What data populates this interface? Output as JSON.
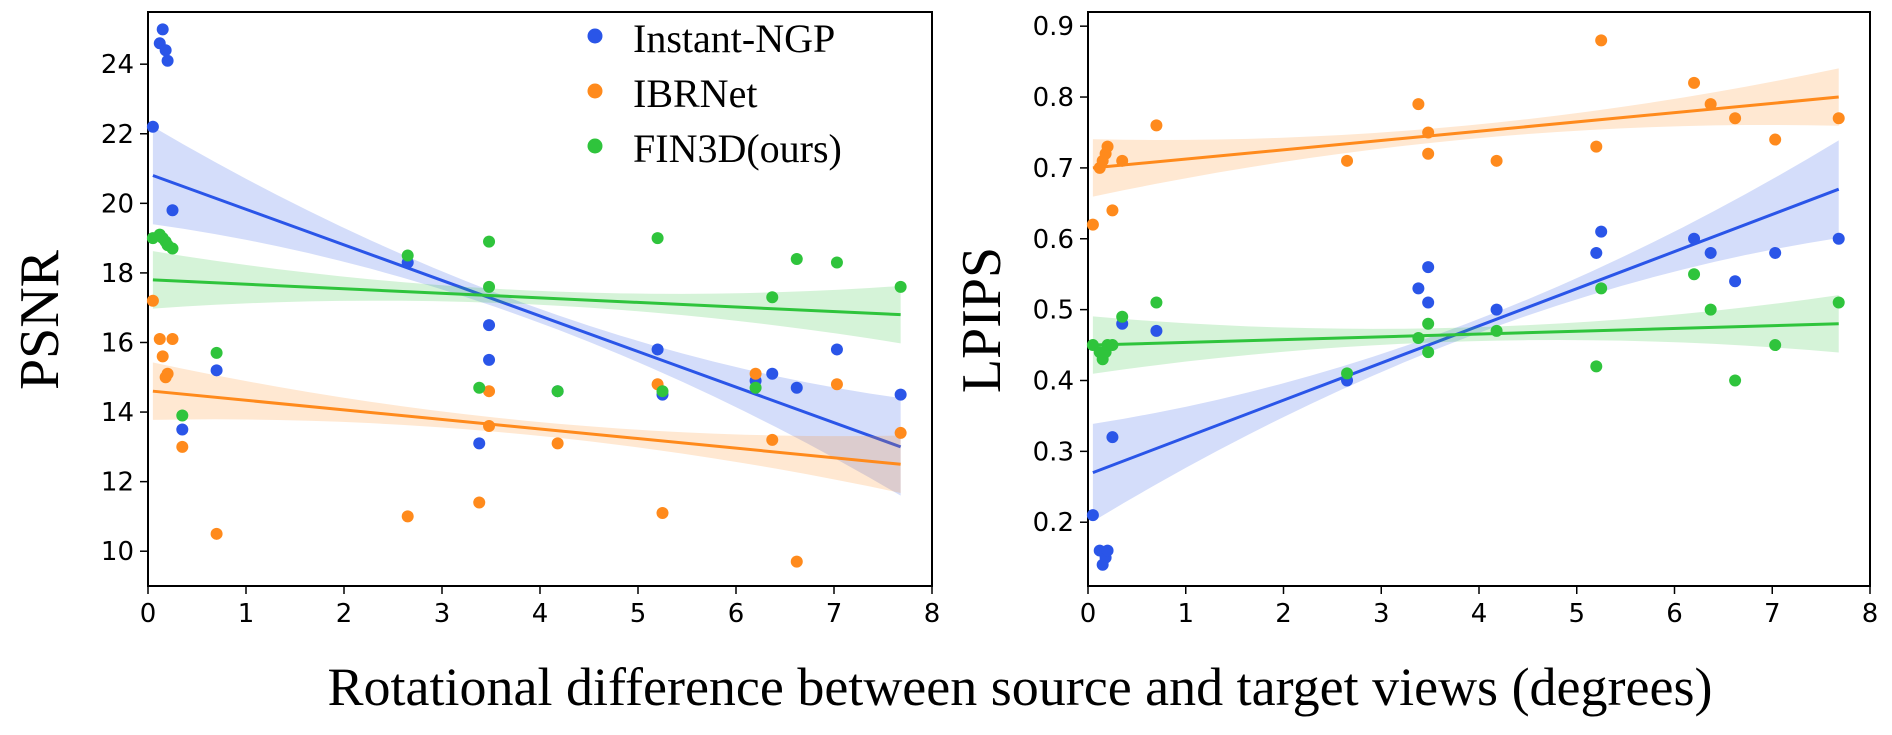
{
  "figure": {
    "xlabel": "Rotational difference between source and target views (degrees)"
  },
  "legend": [
    {
      "name": "Instant-NGP",
      "color": "#2a55e8"
    },
    {
      "name": "IBRNet",
      "color": "#ff8a1c"
    },
    {
      "name": "FIN3D(ours)",
      "color": "#2fc43c"
    }
  ],
  "chart_data": [
    {
      "type": "scatter",
      "ylabel": "PSNR",
      "xlim": [
        0,
        8
      ],
      "ylim": [
        9,
        25.5
      ],
      "xticks": [
        0,
        1,
        2,
        3,
        4,
        5,
        6,
        7,
        8
      ],
      "yticks": [
        10,
        12,
        14,
        16,
        18,
        20,
        22,
        24
      ],
      "series": [
        {
          "name": "Instant-NGP",
          "color": "#2a55e8",
          "x": [
            0.05,
            0.12,
            0.15,
            0.18,
            0.2,
            0.25,
            0.35,
            0.7,
            2.65,
            3.38,
            3.48,
            3.48,
            4.18,
            5.2,
            5.25,
            6.2,
            6.37,
            6.62,
            7.03,
            7.68
          ],
          "y": [
            22.2,
            24.6,
            25.0,
            24.4,
            24.1,
            19.8,
            13.5,
            15.2,
            18.3,
            13.1,
            16.5,
            15.5,
            14.6,
            15.8,
            14.5,
            14.9,
            15.1,
            14.7,
            15.8,
            14.5
          ],
          "fit": {
            "x": [
              0.05,
              7.68
            ],
            "y": [
              20.8,
              13.0
            ]
          }
        },
        {
          "name": "IBRNet",
          "color": "#ff8a1c",
          "x": [
            0.05,
            0.12,
            0.15,
            0.18,
            0.2,
            0.25,
            0.35,
            0.7,
            2.65,
            3.38,
            3.48,
            3.48,
            4.18,
            5.2,
            5.25,
            6.2,
            6.37,
            6.62,
            7.03,
            7.68
          ],
          "y": [
            17.2,
            16.1,
            15.6,
            15.0,
            15.1,
            16.1,
            13.0,
            10.5,
            11.0,
            11.4,
            13.6,
            14.6,
            13.1,
            14.8,
            11.1,
            15.1,
            13.2,
            9.7,
            14.8,
            13.4
          ],
          "fit": {
            "x": [
              0.05,
              7.68
            ],
            "y": [
              14.6,
              12.5
            ]
          }
        },
        {
          "name": "FIN3D(ours)",
          "color": "#2fc43c",
          "x": [
            0.05,
            0.12,
            0.15,
            0.18,
            0.2,
            0.25,
            0.35,
            0.7,
            2.65,
            3.38,
            3.48,
            3.48,
            4.18,
            5.2,
            5.25,
            6.2,
            6.37,
            6.62,
            7.03,
            7.68
          ],
          "y": [
            19.0,
            19.1,
            19.0,
            18.9,
            18.8,
            18.7,
            13.9,
            15.7,
            18.5,
            14.7,
            18.9,
            17.6,
            14.6,
            19.0,
            14.6,
            14.7,
            17.3,
            18.4,
            18.3,
            17.6
          ],
          "fit": {
            "x": [
              0.05,
              7.68
            ],
            "y": [
              17.8,
              16.8
            ]
          }
        }
      ]
    },
    {
      "type": "scatter",
      "ylabel": "LPIPS",
      "xlim": [
        0,
        8
      ],
      "ylim": [
        0.11,
        0.92
      ],
      "xticks": [
        0,
        1,
        2,
        3,
        4,
        5,
        6,
        7,
        8
      ],
      "yticks": [
        0.2,
        0.3,
        0.4,
        0.5,
        0.6,
        0.7,
        0.8,
        0.9
      ],
      "series": [
        {
          "name": "Instant-NGP",
          "color": "#2a55e8",
          "x": [
            0.05,
            0.12,
            0.15,
            0.18,
            0.2,
            0.25,
            0.35,
            0.7,
            2.65,
            3.38,
            3.48,
            3.48,
            4.18,
            5.2,
            5.25,
            6.2,
            6.37,
            6.62,
            7.03,
            7.68
          ],
          "y": [
            0.21,
            0.16,
            0.14,
            0.15,
            0.16,
            0.32,
            0.48,
            0.47,
            0.4,
            0.53,
            0.56,
            0.51,
            0.5,
            0.58,
            0.61,
            0.6,
            0.58,
            0.54,
            0.58,
            0.6
          ],
          "fit": {
            "x": [
              0.05,
              7.68
            ],
            "y": [
              0.27,
              0.67
            ]
          }
        },
        {
          "name": "IBRNet",
          "color": "#ff8a1c",
          "x": [
            0.05,
            0.12,
            0.15,
            0.18,
            0.2,
            0.25,
            0.35,
            0.7,
            2.65,
            3.38,
            3.48,
            3.48,
            4.18,
            5.2,
            5.25,
            6.2,
            6.37,
            6.62,
            7.03,
            7.68
          ],
          "y": [
            0.62,
            0.7,
            0.71,
            0.72,
            0.73,
            0.64,
            0.71,
            0.76,
            0.71,
            0.79,
            0.72,
            0.75,
            0.71,
            0.73,
            0.88,
            0.82,
            0.79,
            0.77,
            0.74,
            0.77
          ],
          "fit": {
            "x": [
              0.05,
              7.68
            ],
            "y": [
              0.7,
              0.8
            ]
          }
        },
        {
          "name": "FIN3D(ours)",
          "color": "#2fc43c",
          "x": [
            0.05,
            0.12,
            0.15,
            0.18,
            0.2,
            0.25,
            0.35,
            0.7,
            2.65,
            3.38,
            3.48,
            3.48,
            4.18,
            5.2,
            5.25,
            6.2,
            6.37,
            6.62,
            7.03,
            7.68
          ],
          "y": [
            0.45,
            0.44,
            0.43,
            0.44,
            0.45,
            0.45,
            0.49,
            0.51,
            0.41,
            0.46,
            0.48,
            0.44,
            0.47,
            0.42,
            0.53,
            0.55,
            0.5,
            0.4,
            0.45,
            0.51
          ],
          "fit": {
            "x": [
              0.05,
              7.68
            ],
            "y": [
              0.45,
              0.48
            ]
          }
        }
      ]
    }
  ]
}
